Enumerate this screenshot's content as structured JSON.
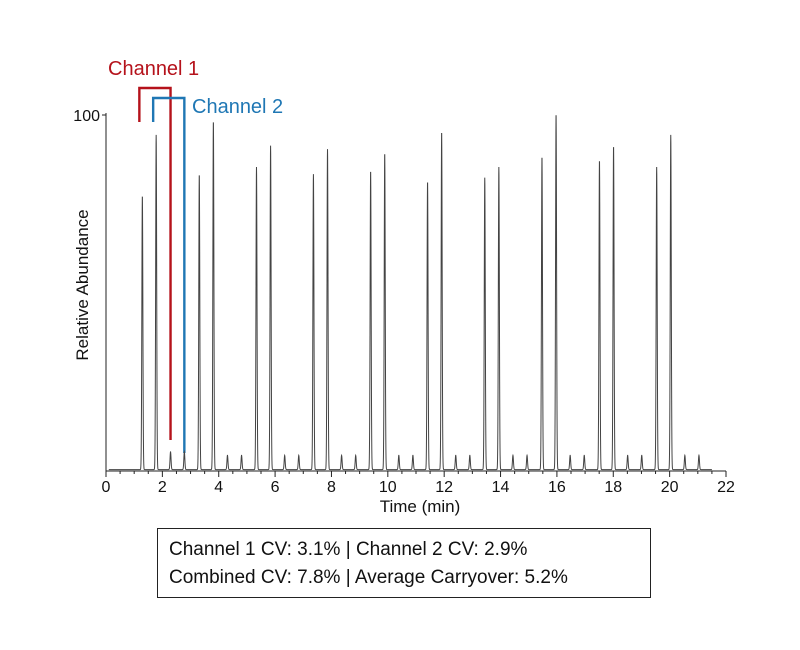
{
  "chart_data": {
    "type": "line",
    "title": "",
    "xlabel": "Time (min)",
    "ylabel": "Relative Abundance",
    "xlim": [
      0,
      22
    ],
    "ylim": [
      0,
      100
    ],
    "x_ticks": [
      0,
      2,
      4,
      6,
      8,
      10,
      12,
      14,
      16,
      18,
      20,
      22
    ],
    "y_ticks": [
      100
    ],
    "grid": false,
    "legend": "none",
    "line_color": "#444444",
    "peaks": {
      "retention_time_min": [
        1.29,
        1.78,
        2.29,
        2.78,
        3.31,
        3.81,
        4.31,
        4.81,
        5.34,
        5.84,
        6.34,
        6.84,
        7.36,
        7.86,
        8.36,
        8.86,
        9.39,
        9.89,
        10.39,
        10.89,
        11.41,
        11.91,
        12.41,
        12.91,
        13.44,
        13.94,
        14.44,
        14.94,
        15.47,
        15.97,
        16.47,
        16.97,
        17.51,
        18.01,
        18.51,
        19.01,
        19.54,
        20.04,
        20.54,
        21.04
      ],
      "relative_abundance": [
        77,
        94,
        5,
        5,
        83,
        98,
        4,
        4,
        85,
        91,
        4,
        4,
        83,
        90,
        4,
        4,
        84,
        89,
        4,
        4,
        81,
        95,
        4,
        4,
        82,
        85,
        4,
        4,
        88,
        100,
        4,
        4,
        87,
        91,
        4,
        4,
        85,
        94,
        4,
        4
      ]
    },
    "annotations": [
      {
        "label": "Channel 1",
        "color": "#b5121b",
        "bracket_x_min": [
          1.29,
          2.29
        ]
      },
      {
        "label": "Channel 2",
        "color": "#1f77b4",
        "bracket_x_min": [
          1.78,
          2.78
        ]
      }
    ]
  },
  "stats": {
    "line1": "Channel 1 CV: 3.1% | Channel 2 CV: 2.9%",
    "line2": "Combined CV: 7.8% | Average Carryover: 5.2%"
  }
}
